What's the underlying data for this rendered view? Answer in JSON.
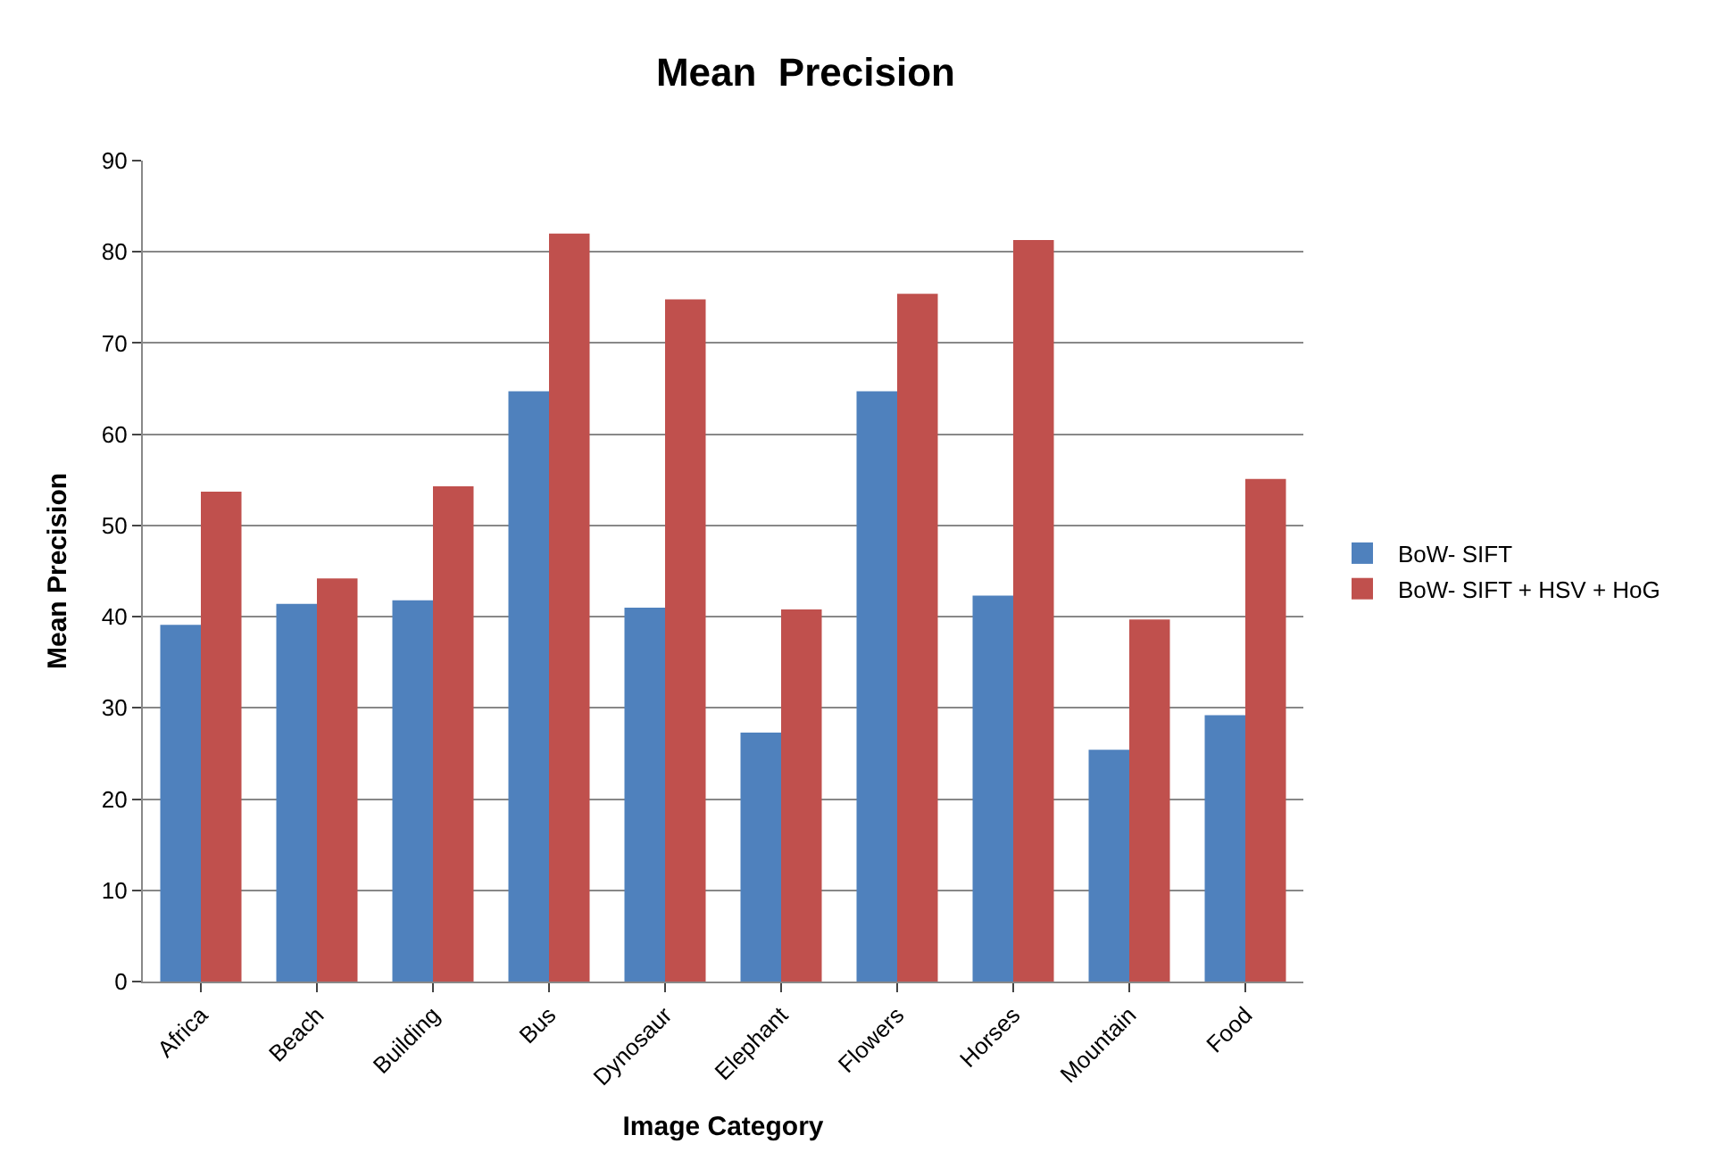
{
  "chart_data": {
    "type": "bar",
    "title": "Mean  Precision",
    "xlabel": "Image Category",
    "ylabel": "Mean Precision",
    "categories": [
      "Africa",
      "Beach",
      "Building",
      "Bus",
      "Dynosaur",
      "Elephant",
      "Flowers",
      "Horses",
      "Mountain",
      "Food"
    ],
    "series": [
      {
        "name": "BoW- SIFT",
        "color": "#4f81bd",
        "values": [
          39.1,
          41.4,
          41.8,
          64.7,
          41.0,
          27.3,
          64.7,
          42.3,
          25.4,
          29.2
        ]
      },
      {
        "name": "BoW- SIFT + HSV + HoG",
        "color": "#c0504d",
        "values": [
          53.7,
          44.2,
          54.3,
          82.0,
          74.8,
          40.8,
          75.4,
          81.3,
          39.7,
          55.1
        ]
      }
    ],
    "ylim": [
      0,
      90
    ],
    "yticks": [
      0,
      10,
      20,
      30,
      40,
      50,
      60,
      70,
      80,
      90
    ],
    "grid": "y",
    "legend": "right"
  }
}
